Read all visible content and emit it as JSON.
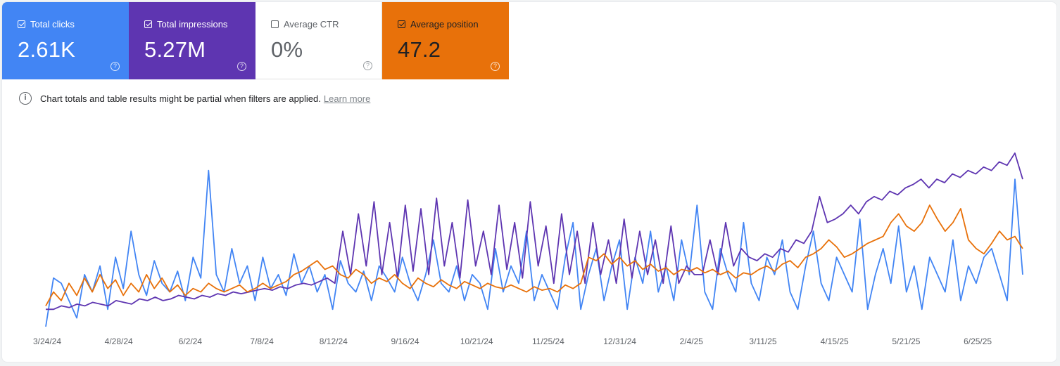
{
  "cards": [
    {
      "label": "Total clicks",
      "value": "2.61K",
      "checked": true,
      "color": "#4285f4"
    },
    {
      "label": "Total impressions",
      "value": "5.27M",
      "checked": true,
      "color": "#5e35b1"
    },
    {
      "label": "Average CTR",
      "value": "0%",
      "checked": false,
      "color": "#ffffff"
    },
    {
      "label": "Average position",
      "value": "47.2",
      "checked": true,
      "color": "#e8710a"
    }
  ],
  "help_glyph": "?",
  "notice": {
    "icon": "info-icon",
    "text": "Chart totals and table results might be partial when filters are applied.",
    "link": "Learn more"
  },
  "chart_data": {
    "type": "line",
    "x_tick_labels": [
      "3/24/24",
      "4/28/24",
      "6/2/24",
      "7/8/24",
      "8/12/24",
      "9/16/24",
      "10/21/24",
      "11/25/24",
      "12/31/24",
      "2/4/25",
      "3/11/25",
      "4/15/25",
      "5/21/25",
      "6/25/25"
    ],
    "x_range": [
      "3/24/24",
      "7/21/25"
    ],
    "grid": false,
    "series": [
      {
        "color": "#4285f4",
        "values": [
          0.0,
          0.28,
          0.25,
          0.15,
          0.05,
          0.3,
          0.2,
          0.35,
          0.1,
          0.4,
          0.22,
          0.55,
          0.3,
          0.18,
          0.38,
          0.25,
          0.2,
          0.32,
          0.15,
          0.4,
          0.28,
          0.9,
          0.3,
          0.2,
          0.45,
          0.25,
          0.35,
          0.15,
          0.4,
          0.22,
          0.3,
          0.18,
          0.42,
          0.25,
          0.35,
          0.2,
          0.3,
          0.1,
          0.38,
          0.25,
          0.2,
          0.32,
          0.15,
          0.35,
          0.28,
          0.2,
          0.4,
          0.25,
          0.15,
          0.3,
          0.5,
          0.25,
          0.2,
          0.35,
          0.15,
          0.3,
          0.25,
          0.1,
          0.45,
          0.2,
          0.35,
          0.25,
          0.55,
          0.15,
          0.3,
          0.2,
          0.1,
          0.4,
          0.6,
          0.1,
          0.3,
          0.45,
          0.15,
          0.35,
          0.5,
          0.1,
          0.4,
          0.25,
          0.55,
          0.2,
          0.35,
          0.15,
          0.5,
          0.3,
          0.7,
          0.2,
          0.1,
          0.45,
          0.3,
          0.2,
          0.6,
          0.25,
          0.15,
          0.4,
          0.3,
          0.5,
          0.2,
          0.1,
          0.35,
          0.55,
          0.25,
          0.15,
          0.4,
          0.3,
          0.2,
          0.62,
          0.1,
          0.3,
          0.45,
          0.25,
          0.58,
          0.2,
          0.35,
          0.1,
          0.4,
          0.3,
          0.2,
          0.5,
          0.15,
          0.35,
          0.25,
          0.4,
          0.45,
          0.3,
          0.15,
          0.85,
          0.3
        ]
      },
      {
        "color": "#5e35b1",
        "values": [
          0.1,
          0.1,
          0.12,
          0.11,
          0.13,
          0.12,
          0.14,
          0.13,
          0.12,
          0.15,
          0.14,
          0.13,
          0.16,
          0.15,
          0.17,
          0.15,
          0.16,
          0.18,
          0.17,
          0.16,
          0.18,
          0.17,
          0.19,
          0.18,
          0.2,
          0.19,
          0.2,
          0.21,
          0.22,
          0.21,
          0.23,
          0.22,
          0.24,
          0.25,
          0.24,
          0.26,
          0.28,
          0.25,
          0.55,
          0.3,
          0.65,
          0.35,
          0.72,
          0.3,
          0.6,
          0.28,
          0.7,
          0.32,
          0.68,
          0.3,
          0.74,
          0.35,
          0.6,
          0.28,
          0.73,
          0.35,
          0.55,
          0.3,
          0.7,
          0.33,
          0.6,
          0.28,
          0.72,
          0.35,
          0.58,
          0.25,
          0.65,
          0.3,
          0.55,
          0.25,
          0.6,
          0.3,
          0.5,
          0.25,
          0.62,
          0.28,
          0.55,
          0.3,
          0.5,
          0.25,
          0.58,
          0.25,
          0.35,
          0.3,
          0.3,
          0.5,
          0.3,
          0.6,
          0.35,
          0.45,
          0.4,
          0.38,
          0.42,
          0.4,
          0.45,
          0.43,
          0.5,
          0.48,
          0.55,
          0.75,
          0.6,
          0.62,
          0.65,
          0.7,
          0.65,
          0.72,
          0.75,
          0.73,
          0.78,
          0.76,
          0.8,
          0.82,
          0.85,
          0.8,
          0.85,
          0.83,
          0.88,
          0.86,
          0.9,
          0.88,
          0.92,
          0.9,
          0.95,
          0.93,
          1.0,
          0.85
        ]
      },
      {
        "color": "#e8710a",
        "values": [
          0.12,
          0.2,
          0.15,
          0.25,
          0.18,
          0.28,
          0.2,
          0.3,
          0.22,
          0.27,
          0.18,
          0.25,
          0.2,
          0.3,
          0.22,
          0.28,
          0.2,
          0.24,
          0.18,
          0.22,
          0.2,
          0.25,
          0.22,
          0.2,
          0.22,
          0.24,
          0.2,
          0.22,
          0.25,
          0.22,
          0.24,
          0.26,
          0.3,
          0.32,
          0.35,
          0.38,
          0.33,
          0.35,
          0.3,
          0.28,
          0.33,
          0.3,
          0.25,
          0.28,
          0.26,
          0.3,
          0.25,
          0.22,
          0.28,
          0.25,
          0.23,
          0.27,
          0.24,
          0.22,
          0.26,
          0.24,
          0.22,
          0.25,
          0.23,
          0.22,
          0.24,
          0.22,
          0.2,
          0.23,
          0.21,
          0.22,
          0.2,
          0.24,
          0.22,
          0.25,
          0.4,
          0.38,
          0.42,
          0.36,
          0.4,
          0.35,
          0.38,
          0.33,
          0.36,
          0.32,
          0.34,
          0.3,
          0.33,
          0.32,
          0.34,
          0.31,
          0.33,
          0.3,
          0.32,
          0.28,
          0.31,
          0.3,
          0.33,
          0.35,
          0.32,
          0.36,
          0.38,
          0.34,
          0.4,
          0.42,
          0.45,
          0.5,
          0.46,
          0.4,
          0.42,
          0.45,
          0.48,
          0.5,
          0.52,
          0.6,
          0.65,
          0.58,
          0.55,
          0.6,
          0.7,
          0.62,
          0.55,
          0.6,
          0.68,
          0.5,
          0.45,
          0.42,
          0.48,
          0.55,
          0.5,
          0.52,
          0.45
        ]
      }
    ]
  }
}
